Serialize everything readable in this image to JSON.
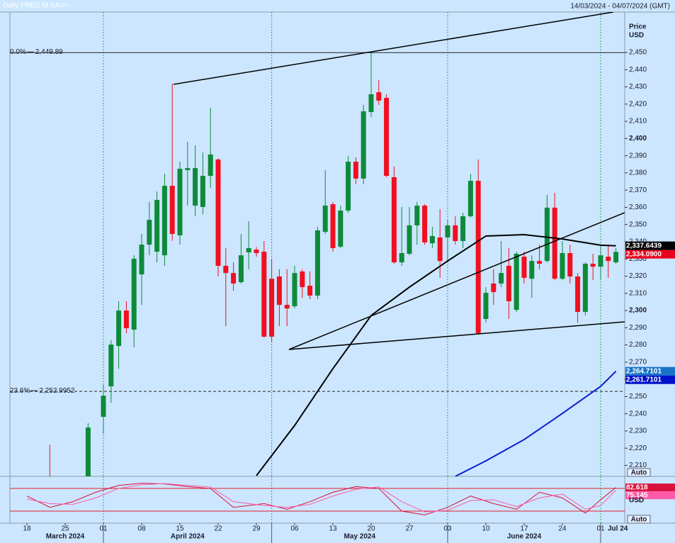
{
  "header": {
    "title": "Daily PREC.M.XAU=",
    "range": "14/03/2024 - 04/07/2024 (GMT)"
  },
  "chart_data": [
    {
      "type": "candlestick",
      "axis_title": "Price",
      "axis_unit": "USD",
      "scale_mode": "Auto",
      "up_color": "#0e8a3a",
      "down_color": "#f01020",
      "ylim": [
        2203.6,
        2473.5
      ],
      "yticks": [
        {
          "value": 2210,
          "label": "2,210"
        },
        {
          "value": 2220,
          "label": "2,220"
        },
        {
          "value": 2230,
          "label": "2,230"
        },
        {
          "value": 2240,
          "label": "2,240"
        },
        {
          "value": 2250,
          "label": "2,250"
        },
        {
          "value": 2260,
          "label": "2,260"
        },
        {
          "value": 2270,
          "label": "2,270"
        },
        {
          "value": 2280,
          "label": "2,280"
        },
        {
          "value": 2290,
          "label": "2,290"
        },
        {
          "value": 2300,
          "label": "2,300"
        },
        {
          "value": 2310,
          "label": "2,310"
        },
        {
          "value": 2320,
          "label": "2,320"
        },
        {
          "value": 2330,
          "label": "2,330"
        },
        {
          "value": 2340,
          "label": "2,340"
        },
        {
          "value": 2350,
          "label": "2,350"
        },
        {
          "value": 2360,
          "label": "2,360"
        },
        {
          "value": 2370,
          "label": "2,370"
        },
        {
          "value": 2380,
          "label": "2,380"
        },
        {
          "value": 2390,
          "label": "2,390"
        },
        {
          "value": 2400,
          "label": "2,400"
        },
        {
          "value": 2410,
          "label": "2,410"
        },
        {
          "value": 2420,
          "label": "2,420"
        },
        {
          "value": 2430,
          "label": "2,430"
        },
        {
          "value": 2440,
          "label": "2,440"
        },
        {
          "value": 2450,
          "label": "2,450"
        }
      ],
      "xticks": [
        {
          "value": "2024-03-18",
          "label": "18"
        },
        {
          "value": "2024-03-25",
          "label": "25"
        },
        {
          "value": "2024-04-01",
          "label": "01"
        },
        {
          "value": "2024-04-08",
          "label": "08"
        },
        {
          "value": "2024-04-15",
          "label": "15"
        },
        {
          "value": "2024-04-22",
          "label": "22"
        },
        {
          "value": "2024-04-29",
          "label": "29"
        },
        {
          "value": "2024-05-06",
          "label": "06"
        },
        {
          "value": "2024-05-13",
          "label": "13"
        },
        {
          "value": "2024-05-20",
          "label": "20"
        },
        {
          "value": "2024-05-27",
          "label": "27"
        },
        {
          "value": "2024-06-03",
          "label": "03"
        },
        {
          "value": "2024-06-10",
          "label": "10"
        },
        {
          "value": "2024-06-17",
          "label": "17"
        },
        {
          "value": "2024-06-24",
          "label": "24"
        },
        {
          "value": "2024-07-01",
          "label": "01"
        }
      ],
      "months": [
        {
          "value": "2024-03-18",
          "label": "March 2024"
        },
        {
          "value": "2024-04-01",
          "label": "April 2024"
        },
        {
          "value": "2024-05-01",
          "label": "May 2024"
        },
        {
          "value": "2024-06-03",
          "label": "June 2024"
        },
        {
          "value": "2024-07-01",
          "label": "Jul 24"
        }
      ],
      "x": [
        "2024-03-21",
        "2024-03-28",
        "2024-04-01",
        "2024-04-02",
        "2024-04-03",
        "2024-04-04",
        "2024-04-05",
        "2024-04-08",
        "2024-04-09",
        "2024-04-10",
        "2024-04-11",
        "2024-04-12",
        "2024-04-15",
        "2024-04-16",
        "2024-04-17",
        "2024-04-18",
        "2024-04-19",
        "2024-04-22",
        "2024-04-23",
        "2024-04-24",
        "2024-04-25",
        "2024-04-26",
        "2024-04-29",
        "2024-04-30",
        "2024-05-01",
        "2024-05-02",
        "2024-05-03",
        "2024-05-06",
        "2024-05-07",
        "2024-05-08",
        "2024-05-09",
        "2024-05-10",
        "2024-05-13",
        "2024-05-14",
        "2024-05-15",
        "2024-05-16",
        "2024-05-17",
        "2024-05-20",
        "2024-05-21",
        "2024-05-22",
        "2024-05-23",
        "2024-05-24",
        "2024-05-27",
        "2024-05-28",
        "2024-05-29",
        "2024-05-30",
        "2024-05-31",
        "2024-06-03",
        "2024-06-04",
        "2024-06-05",
        "2024-06-06",
        "2024-06-07",
        "2024-06-10",
        "2024-06-11",
        "2024-06-12",
        "2024-06-13",
        "2024-06-14",
        "2024-06-17",
        "2024-06-18",
        "2024-06-19",
        "2024-06-20",
        "2024-06-21",
        "2024-06-24",
        "2024-06-25",
        "2024-06-26",
        "2024-06-27",
        "2024-06-28",
        "2024-07-01",
        "2024-07-02",
        "2024-07-03"
      ],
      "open": [
        2200,
        2200,
        2238.2,
        2255.9,
        2279.4,
        2300,
        2288.9,
        2321,
        2338.3,
        2334.2,
        2332.1,
        2372.5,
        2343.7,
        2381.6,
        2361,
        2360.2,
        2378.3,
        2387.8,
        2326,
        2321.8,
        2316.5,
        2333.8,
        2335.4,
        2334.2,
        2318.5,
        2319.8,
        2303.3,
        2302.5,
        2322.7,
        2314.4,
        2308.7,
        2345.7,
        2361.8,
        2337.1,
        2358.1,
        2386.5,
        2376.7,
        2415.4,
        2426.9,
        2423.6,
        2377.5,
        2328,
        2333,
        2349.5,
        2361,
        2339.1,
        2342.5,
        2342.5,
        2349.5,
        2340.4,
        2354.8,
        2375.4,
        2295.1,
        2315.7,
        2315.7,
        2326,
        2300.4,
        2331.3,
        2318.5,
        2328.8,
        2328.8,
        2359.8,
        2318.5,
        2333.4,
        2319.8,
        2299.2,
        2327.2,
        2325.5,
        2331.3,
        2328
      ],
      "high": [
        2222,
        2234.5,
        2256.7,
        2282.7,
        2305.4,
        2305.4,
        2332.1,
        2344.5,
        2363.1,
        2369.2,
        2379.5,
        2431.9,
        2386.5,
        2398.1,
        2396,
        2391.9,
        2417.9,
        2388.5,
        2336.3,
        2328,
        2344.5,
        2351.9,
        2337,
        2340.4,
        2330.1,
        2324,
        2324,
        2326,
        2324,
        2322.7,
        2348.6,
        2381.6,
        2363.1,
        2361,
        2389.8,
        2389,
        2419.5,
        2449.9,
        2433.9,
        2425.7,
        2383.7,
        2360.2,
        2360.2,
        2363.1,
        2361.8,
        2348.6,
        2358.9,
        2352.7,
        2354.8,
        2356.9,
        2379.5,
        2387.8,
        2313.6,
        2324,
        2340.4,
        2336.3,
        2334.2,
        2334.2,
        2332.1,
        2338.3,
        2367.2,
        2368.4,
        2340.4,
        2338.3,
        2321.8,
        2328,
        2333,
        2338.3,
        2338.3,
        2336.3
      ],
      "low": [
        2190,
        2195,
        2228.3,
        2246.4,
        2266.2,
        2286.8,
        2278.6,
        2303.3,
        2332.1,
        2328,
        2326,
        2340.5,
        2338.3,
        2361,
        2354.8,
        2356,
        2371.3,
        2319.8,
        2290.9,
        2311.5,
        2315.7,
        2323.9,
        2331.3,
        2284.3,
        2281.5,
        2290.9,
        2290.9,
        2301.2,
        2307.4,
        2306.6,
        2306.6,
        2344.5,
        2334.2,
        2336.3,
        2356.9,
        2373.4,
        2373.4,
        2412.5,
        2419.5,
        2377.5,
        2327.2,
        2326,
        2332.1,
        2338.3,
        2338.3,
        2336.3,
        2319,
        2328,
        2338.3,
        2336.3,
        2354,
        2286,
        2293,
        2303.3,
        2313.6,
        2295.1,
        2299.2,
        2315.7,
        2307.4,
        2323.9,
        2328,
        2317.7,
        2317.7,
        2315.7,
        2293,
        2297.1,
        2317.7,
        2317.7,
        2319,
        2327.2
      ],
      "close": [
        2195,
        2232,
        2250.5,
        2280.2,
        2300,
        2289.7,
        2330.1,
        2338.3,
        2352.7,
        2364.3,
        2372.5,
        2344.5,
        2382.4,
        2382.8,
        2382.8,
        2378.3,
        2390.7,
        2326,
        2321.8,
        2315.7,
        2332.1,
        2336.3,
        2333.4,
        2284.8,
        2284.8,
        2303.3,
        2301.2,
        2321.8,
        2313.6,
        2308.7,
        2346.6,
        2361,
        2336.3,
        2358.1,
        2386.5,
        2376.7,
        2415.8,
        2425.7,
        2422,
        2378.3,
        2328,
        2333.4,
        2349.5,
        2361,
        2339.6,
        2343.3,
        2328.8,
        2349.5,
        2340.4,
        2354.8,
        2375.4,
        2286.8,
        2310.3,
        2310.7,
        2321.8,
        2305.4,
        2333,
        2319,
        2328.8,
        2327.2,
        2359.8,
        2318.5,
        2333.4,
        2319.8,
        2299.2,
        2327.2,
        2325.5,
        2332.1,
        2328.8,
        2334.09
      ],
      "series": [
        {
          "color": "#000000",
          "x": [
            "2024-04-29",
            "2024-05-06",
            "2024-05-13",
            "2024-05-20",
            "2024-05-27",
            "2024-06-03",
            "2024-06-10",
            "2024-06-17",
            "2024-06-24",
            "2024-07-01",
            "2024-07-03"
          ],
          "values": [
            2204,
            2233.2,
            2266.2,
            2297.1,
            2313.6,
            2328.8,
            2343.3,
            2344.1,
            2341.6,
            2338,
            2337.6439
          ]
        },
        {
          "color": "#0a1ed0",
          "x": [
            "2024-06-04",
            "2024-06-10",
            "2024-06-17",
            "2024-06-24",
            "2024-07-01",
            "2024-07-03"
          ],
          "values": [
            2203.6,
            2212.6,
            2225,
            2240.2,
            2255.9,
            2264.7101
          ]
        }
      ],
      "fib_levels": [
        {
          "label": "0.0%",
          "value": 2449.89,
          "value_label": "2,449.89"
        },
        {
          "label": "23.6%",
          "value": 2252.9952,
          "value_label": "2,252.9952"
        }
      ],
      "last_labels": [
        {
          "value": 2337.6439,
          "label": "2,337.6439",
          "color": "#000000"
        },
        {
          "value": 2334.09,
          "label": "2,334.0900",
          "color": "#e8001c"
        },
        {
          "value": 2264.7101,
          "label": "2,264.7101",
          "color": "#1874c8"
        },
        {
          "value": 2261.7101,
          "label": "2,261.7101",
          "color": "#0010c8"
        }
      ]
    },
    {
      "type": "line",
      "axis_unit": "USD",
      "scale_mode": "Auto",
      "ylim": [
        0,
        100
      ],
      "levels": [
        80,
        20
      ],
      "level_color": "#e0202a",
      "x": [
        "2024-03-18",
        "2024-03-21",
        "2024-03-26",
        "2024-03-29",
        "2024-04-03",
        "2024-04-08",
        "2024-04-11",
        "2024-04-16",
        "2024-04-19",
        "2024-04-24",
        "2024-04-30",
        "2024-05-03",
        "2024-05-08",
        "2024-05-13",
        "2024-05-16",
        "2024-05-21",
        "2024-05-24",
        "2024-05-29",
        "2024-06-03",
        "2024-06-06",
        "2024-06-11",
        "2024-06-14",
        "2024-06-19",
        "2024-06-24",
        "2024-06-27",
        "2024-07-01",
        "2024-07-03"
      ],
      "series": [
        {
          "color": "#d8103c",
          "values": [
            60,
            30,
            45,
            70,
            88,
            94,
            92,
            85,
            80,
            30,
            40,
            25,
            45,
            70,
            85,
            80,
            20,
            10,
            30,
            60,
            40,
            25,
            70,
            55,
            15,
            50,
            82.618
          ],
          "value_label": "82.618"
        },
        {
          "color": "#ff5aa8",
          "values": [
            52,
            40,
            38,
            55,
            80,
            90,
            93,
            88,
            84,
            45,
            35,
            30,
            38,
            60,
            78,
            84,
            45,
            18,
            22,
            48,
            50,
            32,
            55,
            65,
            25,
            35,
            75.145
          ],
          "value_label": "75.145"
        }
      ]
    }
  ]
}
